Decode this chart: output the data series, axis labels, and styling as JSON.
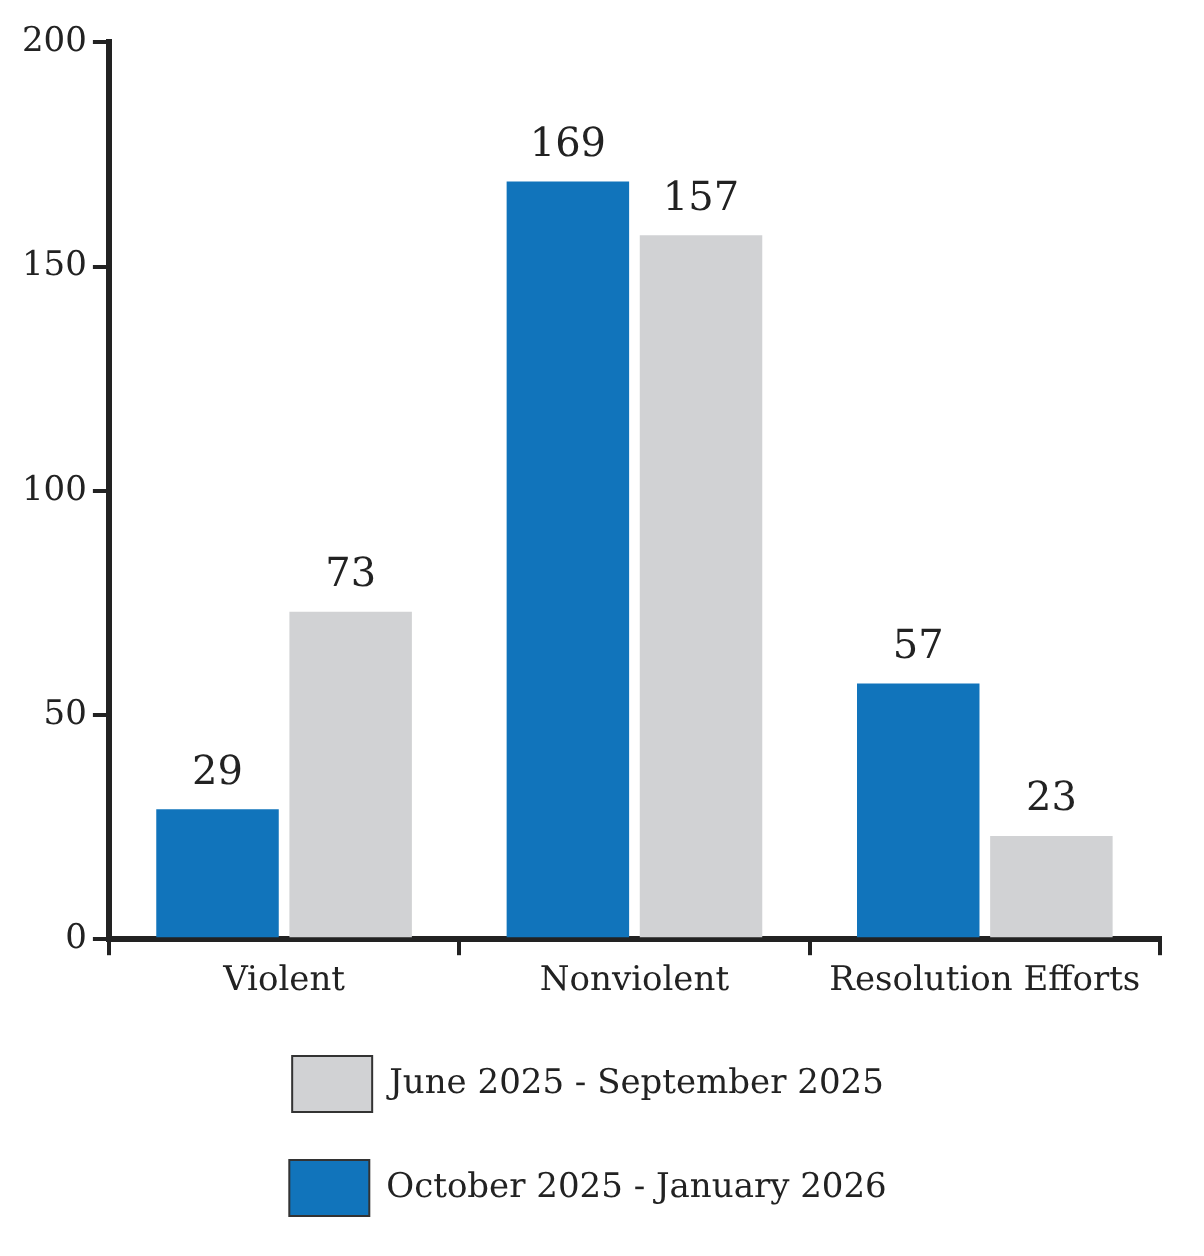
{
  "chart_data": {
    "type": "bar",
    "categories": [
      "Violent",
      "Nonviolent",
      "Resolution Efforts"
    ],
    "series": [
      {
        "name": "October 2025 - January 2026",
        "color": "#1174bb",
        "values": [
          29,
          169,
          57
        ]
      },
      {
        "name": "June 2025 - September 2025",
        "color": "#d1d2d4",
        "values": [
          73,
          157,
          23
        ]
      }
    ],
    "ylim": [
      0,
      200
    ],
    "yticks": [
      0,
      50,
      100,
      150,
      200
    ],
    "grid": false,
    "legend": "bottom",
    "data_labels": true
  }
}
